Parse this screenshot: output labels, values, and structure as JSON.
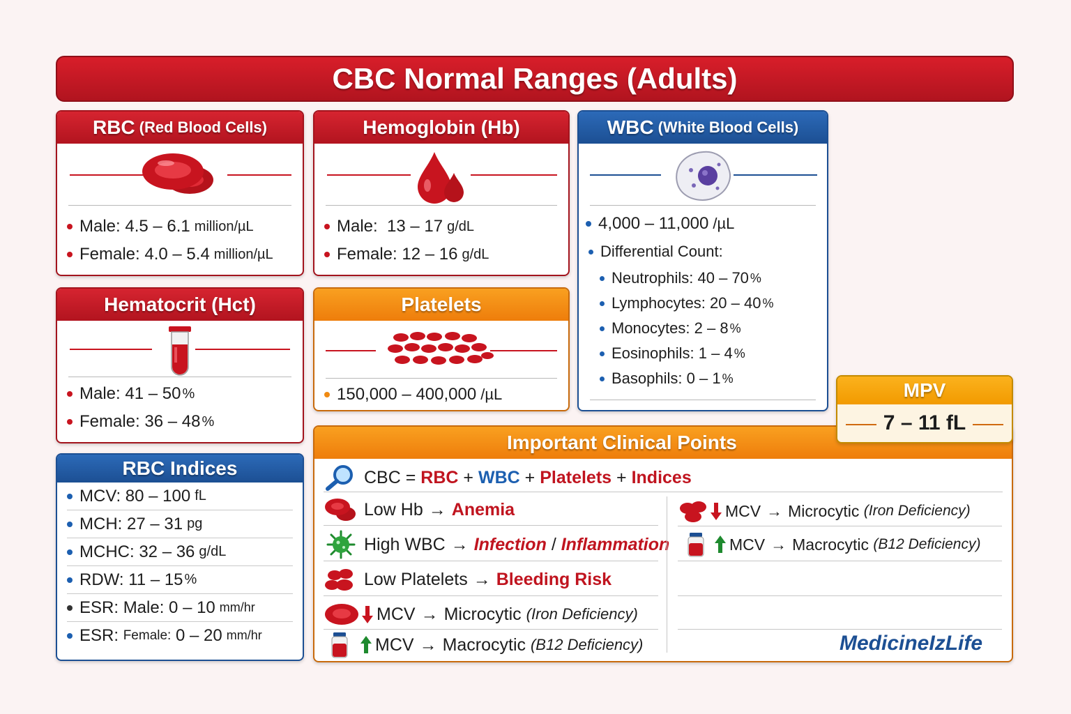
{
  "title": "CBC Normal Ranges (Adults)",
  "rbc": {
    "title_main": "RBC",
    "title_sub": "(Red Blood Cells)",
    "icon": "red-blood-cells-icon",
    "male_label": "Male:",
    "male_value": "4.5 – 6.1",
    "male_unit": "million/µL",
    "female_label": "Female:",
    "female_value": "4.0 – 5.4",
    "female_unit": "million/µL"
  },
  "hemoglobin": {
    "title": "Hemoglobin (Hb)",
    "icon": "blood-drops-icon",
    "male_label": "Male:",
    "male_value": "13 – 17",
    "male_unit": "g/dL",
    "female_label": "Female:",
    "female_value": "12 – 16",
    "female_unit": "g/dL"
  },
  "wbc": {
    "title_main": "WBC",
    "title_sub": "(White Blood Cells)",
    "icon": "white-blood-cell-icon",
    "range": "4,000 – 11,000",
    "unit": "/µL",
    "differential_label": "Differential Count:",
    "differential": [
      {
        "name": "Neutrophils:",
        "value": "40 – 70",
        "unit": "%"
      },
      {
        "name": "Lymphocytes:",
        "value": "20 – 40",
        "unit": "%"
      },
      {
        "name": "Monocytes:",
        "value": "2 – 8",
        "unit": "%"
      },
      {
        "name": "Eosinophils:",
        "value": "1 – 4",
        "unit": "%"
      },
      {
        "name": "Basophils:",
        "value": "0 – 1",
        "unit": "%"
      }
    ]
  },
  "hematocrit": {
    "title": "Hematocrit (Hct)",
    "icon": "blood-tube-icon",
    "male_label": "Male:",
    "male_value": "41 – 50",
    "male_unit": "%",
    "female_label": "Female:",
    "female_value": "36 – 48",
    "female_unit": "%"
  },
  "platelets": {
    "title": "Platelets",
    "icon": "platelets-icon",
    "range": "150,000 – 400,000",
    "unit": "/µL"
  },
  "mpv": {
    "title": "MPV",
    "value": "7 – 11 fL"
  },
  "indices": {
    "title": "RBC Indices",
    "rows": [
      {
        "label": "MCV:",
        "value": "80 – 100",
        "unit": "fL"
      },
      {
        "label": "MCH:",
        "value": "27 – 31",
        "unit": "pg"
      },
      {
        "label": "MCHC:",
        "value": "32 – 36",
        "unit": "g/dL"
      },
      {
        "label": "RDW:",
        "value": "11 – 15",
        "unit": "%"
      },
      {
        "label": "ESR:",
        "sub": "Male:",
        "value": "0 – 10",
        "unit": "mm/hr"
      },
      {
        "label": "ESR:",
        "sub": "Female:",
        "value": "0 – 20",
        "unit": "mm/hr"
      }
    ]
  },
  "clinical": {
    "title": "Important Clinical Points",
    "cbc_line": {
      "prefix": "CBC =",
      "rbc": "RBC",
      "plus": "+",
      "wbc": "WBC",
      "platelets": "Platelets",
      "indices": "Indices"
    },
    "arrow": "→",
    "slash": "/",
    "low_hb": {
      "text": "Low Hb",
      "result": "Anemia"
    },
    "high_wbc": {
      "text": "High WBC",
      "result1": "Infection",
      "result2": "Inflammation"
    },
    "low_plt": {
      "text": "Low Platelets",
      "result": "Bleeding Risk"
    },
    "mcv_down": {
      "text": "MCV",
      "result": "Microcytic",
      "cause": "(Iron Deficiency)"
    },
    "mcv_up": {
      "text": "MCV",
      "result": "Macrocytic",
      "cause": "(B12 Deficiency)"
    }
  },
  "brand": "MedicineIzLife",
  "colors": {
    "red": "#c0141f",
    "blue": "#1c5fb0",
    "orange": "#f08a12",
    "green": "#1e8a2e"
  }
}
